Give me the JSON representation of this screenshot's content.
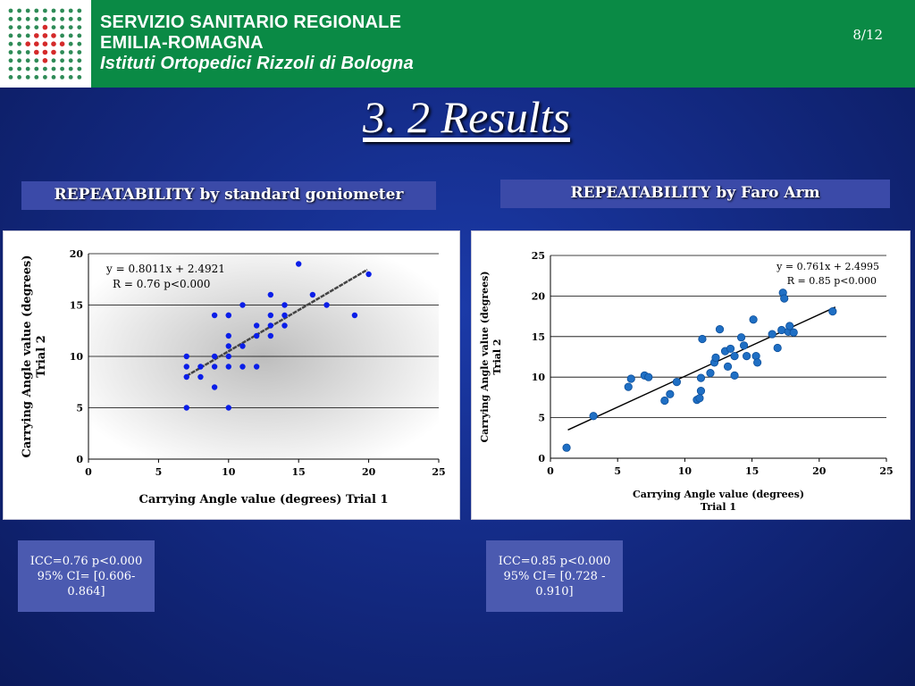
{
  "header": {
    "line1": "SERVIZIO SANITARIO REGIONALE",
    "line2": "EMILIA-ROMAGNA",
    "line3": "Istituti Ortopedici Rizzoli di Bologna",
    "page": "8/12",
    "brand_color": "#0a8a45"
  },
  "title": "3. 2 Results",
  "sections": {
    "left_heading": "REPEATABILITY by standard goniometer",
    "right_heading": "REPEATABILITY by Faro Arm"
  },
  "stats": {
    "left_line1": "ICC=0.76  p<0.000",
    "left_line2": "95% CI= [0.606- 0.864]",
    "right_line1": "ICC=0.85  p<0.000",
    "right_line2": "95% CI= [0.728 - 0.910]"
  },
  "chart_data": [
    {
      "type": "scatter",
      "title": "",
      "xlabel": "Carrying Angle value (degrees) Trial 1",
      "ylabel_lines": [
        "Carrying Angle value (degrees)",
        "Trial 2"
      ],
      "xlim": [
        0,
        25
      ],
      "ylim": [
        0,
        20
      ],
      "xticks": [
        "0",
        "5",
        "10",
        "15",
        "20",
        "25"
      ],
      "yticks": [
        "0",
        "5",
        "10",
        "15",
        "20"
      ],
      "grid": "horizontal",
      "point_color": "#0a1ee8",
      "equation": "y = 0.8011x + 2.4921",
      "r_text": "R = 0.76  p<0.000",
      "trendline": {
        "slope": 0.8011,
        "intercept": 2.4921,
        "x_range": [
          7,
          19.9
        ]
      },
      "x": [
        7,
        7,
        7,
        7,
        8,
        8,
        9,
        9,
        9,
        9,
        10,
        10,
        10,
        10,
        10,
        10,
        10,
        11,
        11,
        11,
        12,
        12,
        12,
        13,
        13,
        13,
        13,
        14,
        14,
        14,
        15,
        16,
        17,
        19,
        20
      ],
      "y": [
        5,
        8,
        9,
        10,
        8,
        9,
        7,
        9,
        10,
        14,
        5,
        9,
        10,
        11,
        12,
        14,
        14,
        9,
        11,
        15,
        9,
        12,
        13,
        12,
        13,
        14,
        16,
        13,
        14,
        15,
        19,
        16,
        15,
        14,
        18
      ]
    },
    {
      "type": "scatter",
      "title": "",
      "xlabel_lines": [
        "Carrying Angle value (degrees)",
        "Trial 1"
      ],
      "ylabel_lines": [
        "Carrying Angle value (degrees)",
        "Trial 2"
      ],
      "xlim": [
        0,
        25
      ],
      "ylim": [
        0,
        25
      ],
      "xticks": [
        "0",
        "5",
        "10",
        "15",
        "20",
        "25"
      ],
      "yticks": [
        "0",
        "5",
        "10",
        "15",
        "20",
        "25"
      ],
      "grid": "horizontal",
      "point_color": "#1f6fc4",
      "equation": "y = 0.761x + 2.4995",
      "r_text": "R = 0.85  p<0.000",
      "trendline": {
        "slope": 0.761,
        "intercept": 2.4995,
        "x_range": [
          1.3,
          21.2
        ]
      },
      "x": [
        1.2,
        3.2,
        5.8,
        6.0,
        7.0,
        7.3,
        8.5,
        8.9,
        9.4,
        10.9,
        11.1,
        11.2,
        11.2,
        11.3,
        11.9,
        12.2,
        12.3,
        12.6,
        13.0,
        13.2,
        13.4,
        13.7,
        13.7,
        14.2,
        14.4,
        14.6,
        15.1,
        15.3,
        15.4,
        16.5,
        16.9,
        17.2,
        17.3,
        17.4,
        17.7,
        17.8,
        18.1,
        21.0
      ],
      "y": [
        1.3,
        5.2,
        8.8,
        9.8,
        10.2,
        10.0,
        7.1,
        7.9,
        9.4,
        7.2,
        7.4,
        8.3,
        9.9,
        14.7,
        10.5,
        11.8,
        12.4,
        15.9,
        13.2,
        11.3,
        13.5,
        12.6,
        10.2,
        14.9,
        13.9,
        12.6,
        17.1,
        12.6,
        11.8,
        15.3,
        13.6,
        15.8,
        20.4,
        19.7,
        15.6,
        16.3,
        15.5,
        18.1
      ]
    }
  ]
}
